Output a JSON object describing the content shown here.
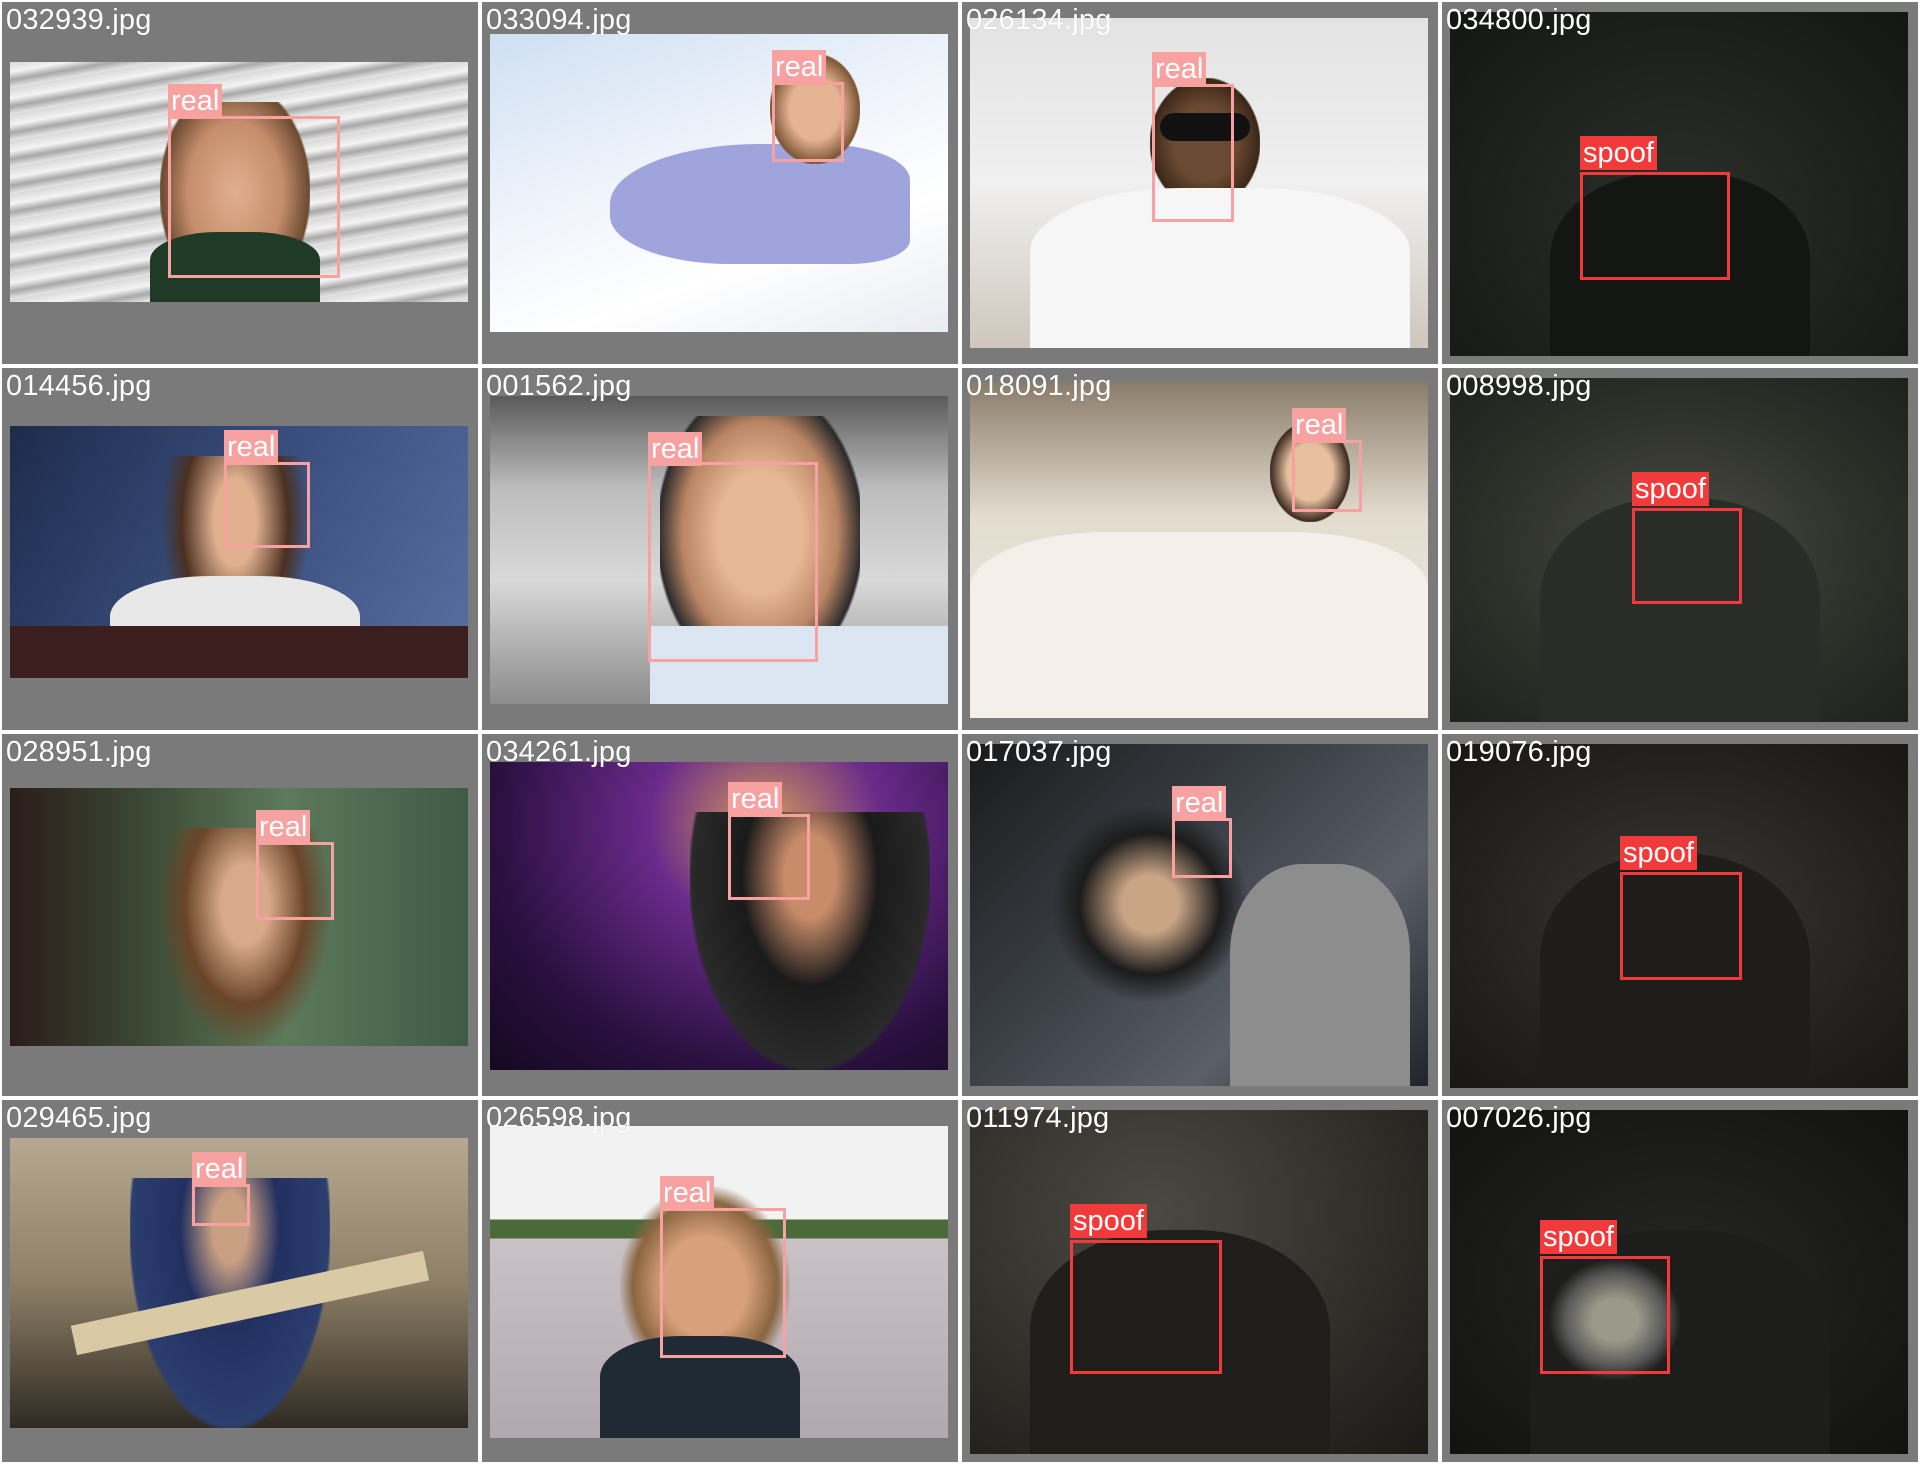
{
  "colors": {
    "real": "#f7a1a1",
    "spoof": "#f23a3a",
    "cell_bg": "#7a7a7a"
  },
  "tiles": [
    {
      "file": "032939.jpg",
      "label": "real"
    },
    {
      "file": "033094.jpg",
      "label": "real"
    },
    {
      "file": "026134.jpg",
      "label": "real"
    },
    {
      "file": "034800.jpg",
      "label": "spoof"
    },
    {
      "file": "014456.jpg",
      "label": "real"
    },
    {
      "file": "001562.jpg",
      "label": "real"
    },
    {
      "file": "018091.jpg",
      "label": "real"
    },
    {
      "file": "008998.jpg",
      "label": "spoof"
    },
    {
      "file": "028951.jpg",
      "label": "real"
    },
    {
      "file": "034261.jpg",
      "label": "real"
    },
    {
      "file": "017037.jpg",
      "label": "real"
    },
    {
      "file": "019076.jpg",
      "label": "spoof"
    },
    {
      "file": "029465.jpg",
      "label": "real"
    },
    {
      "file": "026598.jpg",
      "label": "real"
    },
    {
      "file": "011974.jpg",
      "label": "spoof"
    },
    {
      "file": "007026.jpg",
      "label": "spoof"
    }
  ]
}
